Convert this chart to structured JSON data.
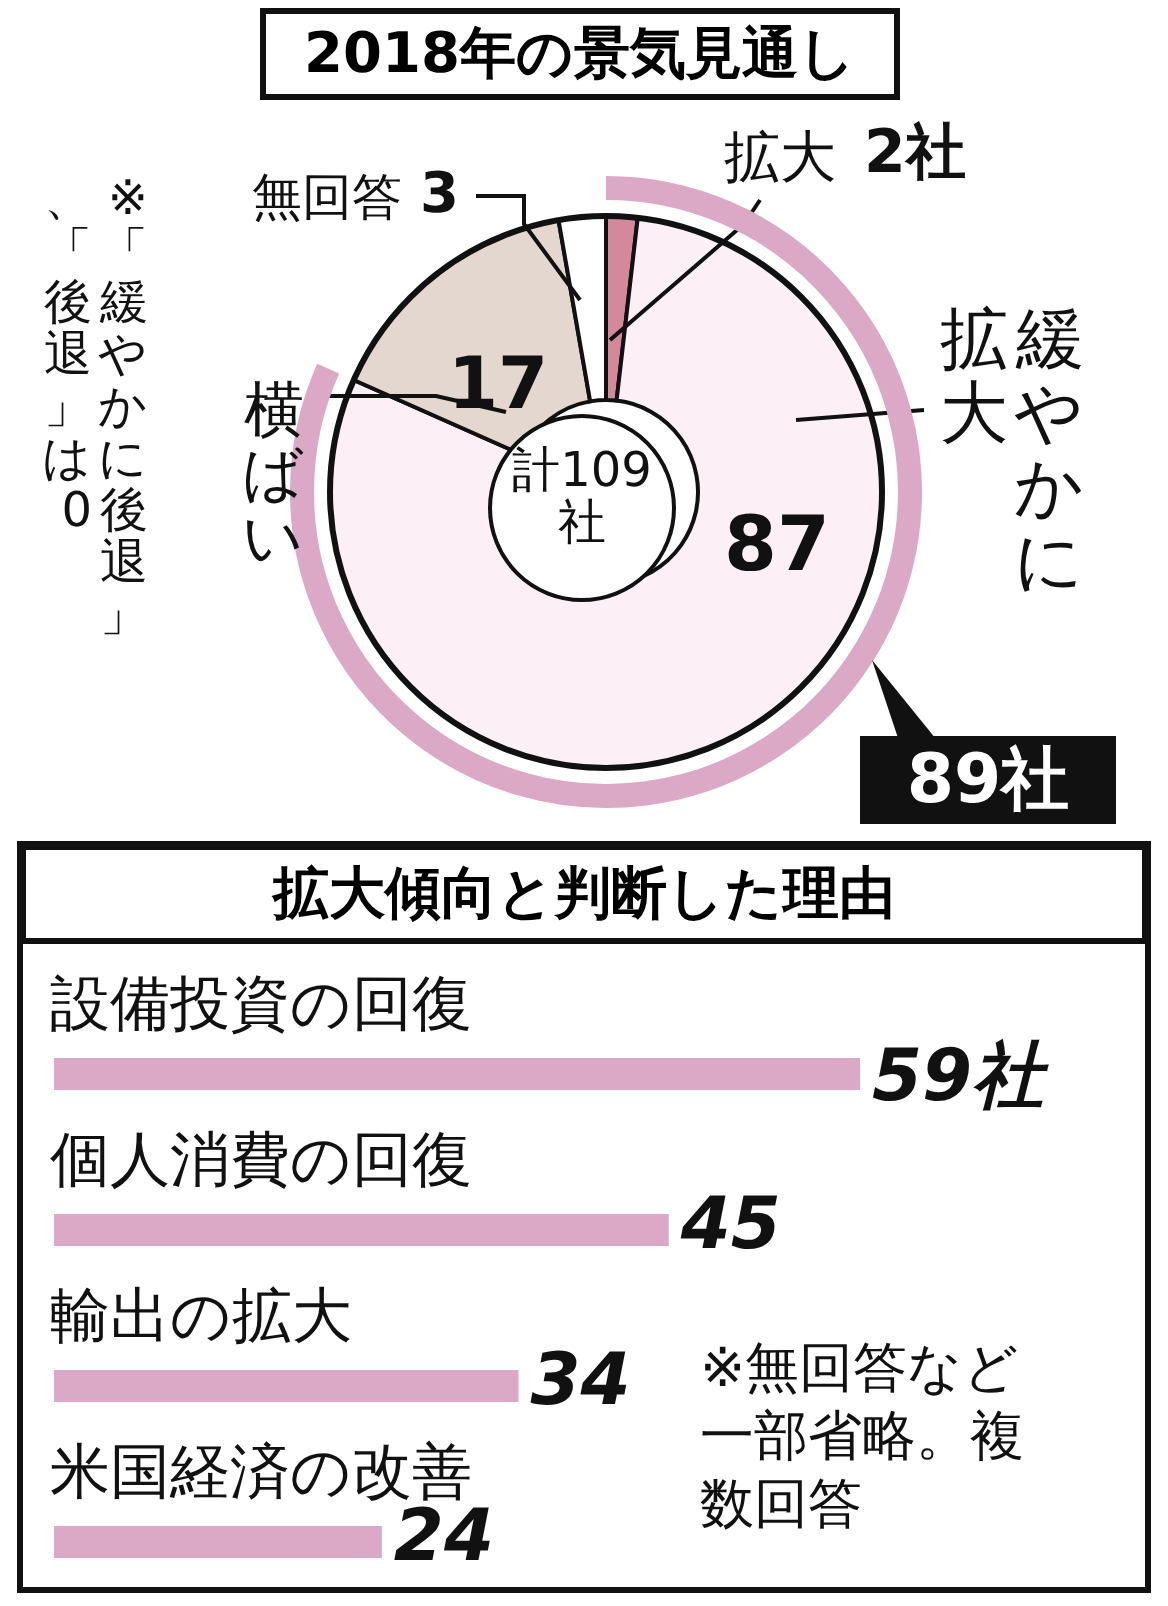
{
  "chart_data": [
    {
      "type": "donut",
      "title": "2018年の景気見通し",
      "categories": [
        "拡大",
        "緩やかに拡大",
        "横ばい",
        "無回答"
      ],
      "values": [
        2,
        87,
        17,
        3
      ],
      "colors": [
        "#d4899b",
        "#fcf0f6",
        "#e3d7cf",
        "#ffffff"
      ],
      "value_labels": [
        "2社",
        "87",
        "17",
        "3"
      ],
      "annotations": [
        "計109社",
        "89社",
        "※「緩やかに後退」、「後退」は0"
      ]
    },
    {
      "type": "bar",
      "orientation": "horizontal",
      "title": "拡大傾向と判断した理由",
      "categories": [
        "設備投資の回復",
        "個人消費の回復",
        "輸出の拡大",
        "米国経済の改善"
      ],
      "values": [
        59,
        45,
        34,
        24
      ],
      "color": "#dba9c6",
      "value_labels": [
        "59社",
        "45",
        "34",
        "24"
      ],
      "annotations": [
        "※無回答など一部省略。複数回答"
      ]
    }
  ]
}
